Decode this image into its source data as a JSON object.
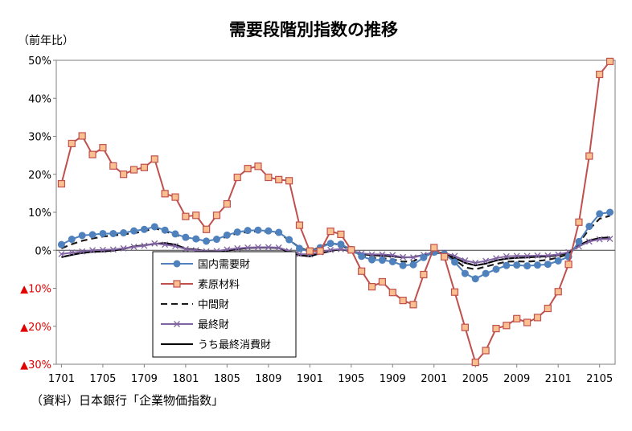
{
  "chart_data": {
    "type": "line",
    "title": "需要段階別指数の推移",
    "ylabel": "（前年比）",
    "source": "（資料）日本銀行「企業物価指数」",
    "ylim": [
      -30,
      50
    ],
    "yticks": [
      {
        "value": 50,
        "label": "50%",
        "negative": false
      },
      {
        "value": 40,
        "label": "40%",
        "negative": false
      },
      {
        "value": 30,
        "label": "30%",
        "negative": false
      },
      {
        "value": 20,
        "label": "20%",
        "negative": false
      },
      {
        "value": 10,
        "label": "10%",
        "negative": false
      },
      {
        "value": 0,
        "label": "0%",
        "negative": false
      },
      {
        "value": -10,
        "label": "▲10%",
        "negative": true
      },
      {
        "value": -20,
        "label": "▲20%",
        "negative": true
      },
      {
        "value": -30,
        "label": "▲30%",
        "negative": true
      }
    ],
    "x": [
      "1701",
      "1702",
      "1703",
      "1704",
      "1705",
      "1706",
      "1707",
      "1708",
      "1709",
      "1710",
      "1711",
      "1712",
      "1801",
      "1802",
      "1803",
      "1804",
      "1805",
      "1806",
      "1807",
      "1808",
      "1809",
      "1810",
      "1811",
      "1812",
      "1901",
      "1902",
      "1903",
      "1904",
      "1905",
      "1906",
      "1907",
      "1908",
      "1909",
      "1910",
      "1911",
      "1912",
      "2001",
      "2002",
      "2003",
      "2004",
      "2005",
      "2006",
      "2007",
      "2008",
      "2009",
      "2010",
      "2011",
      "2012",
      "2101",
      "2102",
      "2103",
      "2104",
      "2105",
      "2106"
    ],
    "xtick_labels": [
      "1701",
      "1705",
      "1709",
      "1801",
      "1805",
      "1809",
      "1901",
      "1905",
      "1909",
      "2001",
      "2005",
      "2009",
      "2101",
      "2105"
    ],
    "legend": {
      "placement": "bottom-center-left"
    },
    "series": [
      {
        "name": "国内需要財",
        "color": "#4f81bd",
        "marker": "circle",
        "dash": "solid",
        "values": [
          1.5,
          2.9,
          3.9,
          4.1,
          4.4,
          4.4,
          4.6,
          5.1,
          5.5,
          6.2,
          5.3,
          4.3,
          3.4,
          3.0,
          2.4,
          2.9,
          4.0,
          4.8,
          5.2,
          5.3,
          5.1,
          4.7,
          2.8,
          0.5,
          -0.4,
          0.7,
          1.8,
          1.6,
          0.2,
          -1.6,
          -2.5,
          -2.6,
          -3.0,
          -4.0,
          -3.8,
          -1.9,
          -0.5,
          -1.0,
          -3.1,
          -6.1,
          -7.5,
          -6.1,
          -5.0,
          -4.0,
          -3.9,
          -4.1,
          -3.9,
          -3.7,
          -2.8,
          -1.7,
          2.3,
          6.3,
          9.6,
          10.0
        ]
      },
      {
        "name": "素原材料",
        "color": "#c0504d",
        "marker": "square",
        "marker_fill": "#fac08f",
        "dash": "solid",
        "values": [
          17.5,
          28.1,
          30.1,
          25.2,
          27.0,
          22.2,
          20.0,
          21.2,
          21.8,
          24.0,
          14.9,
          14.0,
          8.9,
          9.2,
          5.5,
          9.2,
          12.2,
          19.2,
          21.5,
          22.1,
          19.2,
          18.6,
          18.3,
          6.6,
          -0.2,
          -0.2,
          5.0,
          4.2,
          0.1,
          -5.5,
          -9.6,
          -8.3,
          -11.1,
          -13.2,
          -14.3,
          -6.4,
          0.7,
          -1.7,
          -11.0,
          -20.3,
          -29.5,
          -26.4,
          -20.6,
          -19.8,
          -18.0,
          -19.0,
          -17.7,
          -15.3,
          -10.9,
          -3.7,
          7.4,
          24.8,
          46.3,
          49.7
        ]
      },
      {
        "name": "中間財",
        "color": "#1a1a1a",
        "marker": "none",
        "dash": "dashed",
        "values": [
          0.5,
          1.6,
          2.5,
          3.1,
          3.6,
          3.9,
          4.2,
          4.5,
          5.0,
          5.8,
          5.0,
          4.1,
          3.2,
          2.8,
          2.2,
          2.7,
          3.6,
          4.5,
          4.8,
          5.0,
          4.8,
          4.5,
          2.7,
          0.7,
          -0.3,
          0.9,
          1.9,
          1.4,
          0.0,
          -1.5,
          -2.0,
          -2.1,
          -2.4,
          -3.0,
          -2.9,
          -1.5,
          -0.3,
          -0.8,
          -2.5,
          -4.5,
          -5.0,
          -4.3,
          -3.6,
          -3.0,
          -2.9,
          -3.0,
          -2.8,
          -2.5,
          -1.9,
          -1.0,
          2.0,
          5.5,
          8.3,
          9.1
        ]
      },
      {
        "name": "最終財",
        "color": "#8064a2",
        "marker": "x",
        "dash": "solid",
        "values": [
          -1.0,
          -0.6,
          -0.3,
          0.0,
          0.1,
          0.2,
          0.5,
          0.9,
          1.2,
          1.8,
          1.5,
          1.1,
          0.3,
          0.0,
          -0.3,
          -0.2,
          0.2,
          0.5,
          0.7,
          0.8,
          0.8,
          0.7,
          -0.2,
          -1.0,
          -1.1,
          -0.5,
          0.1,
          0.3,
          -0.1,
          -0.8,
          -1.1,
          -1.1,
          -1.3,
          -1.8,
          -1.9,
          -1.2,
          -0.5,
          -0.7,
          -1.5,
          -2.7,
          -3.3,
          -2.8,
          -2.1,
          -1.6,
          -1.5,
          -1.5,
          -1.4,
          -1.4,
          -1.1,
          -0.5,
          1.0,
          2.3,
          2.9,
          3.0
        ]
      },
      {
        "name": "うち最終消費財",
        "color": "#000000",
        "marker": "none",
        "dash": "solid",
        "values": [
          -1.8,
          -1.2,
          -0.7,
          -0.4,
          -0.3,
          -0.1,
          0.4,
          1.0,
          1.3,
          1.7,
          1.9,
          1.5,
          0.4,
          0.2,
          -0.3,
          -0.5,
          -0.1,
          0.3,
          0.6,
          0.7,
          0.7,
          0.6,
          -0.5,
          -1.3,
          -1.6,
          -0.8,
          -0.2,
          0.3,
          -0.3,
          -1.0,
          -1.3,
          -1.4,
          -1.6,
          -1.9,
          -1.8,
          -1.2,
          -0.7,
          -0.8,
          -2.0,
          -3.3,
          -4.0,
          -3.5,
          -2.7,
          -2.2,
          -2.0,
          -1.9,
          -1.7,
          -1.6,
          -1.3,
          -0.6,
          1.3,
          2.6,
          3.2,
          3.4
        ]
      }
    ]
  }
}
